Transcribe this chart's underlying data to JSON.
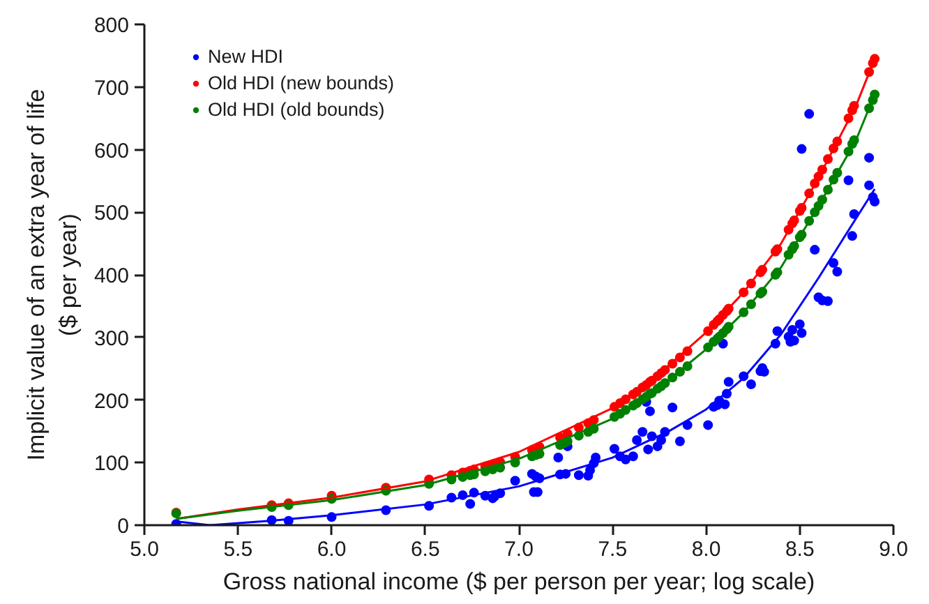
{
  "chart_data": {
    "type": "scatter",
    "xlabel": "Gross national income ($ per person per year; log scale)",
    "ylabel": "Implicit value of an extra year of life\n($ per year)",
    "xlim": [
      5.0,
      9.0
    ],
    "ylim": [
      0,
      800
    ],
    "xticks": [
      {
        "value": 5,
        "label": "5.0"
      },
      5.5,
      {
        "value": 6,
        "label": "6.0"
      },
      6.5,
      {
        "value": 7,
        "label": "7.0"
      },
      7.5,
      {
        "value": 8,
        "label": "8.0"
      },
      8.5,
      {
        "value": 9,
        "label": "9.0"
      }
    ],
    "yticks": [
      0,
      100,
      200,
      300,
      400,
      500,
      600,
      700,
      800
    ],
    "legend": "top left",
    "series": [
      {
        "name": "New HDI",
        "marker": "circle",
        "color": "#0000ff",
        "x": [
          5.17,
          5.68,
          5.77,
          6.0,
          6.29,
          6.52,
          6.64,
          6.7,
          6.74,
          6.76,
          6.82,
          6.86,
          6.87,
          6.9,
          6.98,
          7.07,
          7.08,
          7.09,
          7.1,
          7.11,
          7.21,
          7.22,
          7.25,
          7.26,
          7.32,
          7.37,
          7.38,
          7.4,
          7.41,
          7.51,
          7.54,
          7.57,
          7.61,
          7.63,
          7.66,
          7.68,
          7.69,
          7.7,
          7.71,
          7.74,
          7.76,
          7.78,
          7.82,
          7.86,
          7.9,
          8.01,
          8.04,
          8.06,
          8.07,
          8.09,
          8.1,
          8.11,
          8.12,
          8.2,
          8.24,
          8.29,
          8.3,
          8.31,
          8.37,
          8.38,
          8.44,
          8.45,
          8.46,
          8.47,
          8.5,
          8.51,
          8.51,
          8.55,
          8.58,
          8.6,
          8.62,
          8.65,
          8.68,
          8.7,
          8.76,
          8.78,
          8.79,
          8.87,
          8.87,
          8.89,
          8.9
        ],
        "values": [
          2,
          8,
          7,
          13,
          24,
          31,
          44,
          48,
          34,
          52,
          47,
          43,
          46,
          51,
          71,
          82,
          53,
          78,
          53,
          75,
          108,
          81,
          82,
          126,
          80,
          79,
          88,
          99,
          108,
          122,
          110,
          105,
          110,
          136,
          149,
          197,
          121,
          182,
          142,
          126,
          136,
          149,
          188,
          134,
          160,
          160,
          189,
          192,
          199,
          290,
          193,
          210,
          229,
          238,
          225,
          246,
          251,
          245,
          290,
          310,
          301,
          293,
          312,
          295,
          321,
          307,
          601,
          657,
          440,
          364,
          359,
          358,
          419,
          405,
          551,
          462,
          497,
          587,
          543,
          524,
          517
        ]
      },
      {
        "name": "Old HDI (new bounds)",
        "marker": "circle",
        "color": "#ff0000",
        "x": [
          5.17,
          5.68,
          5.77,
          6.0,
          6.29,
          6.52,
          6.64,
          6.7,
          6.74,
          6.76,
          6.82,
          6.86,
          6.9,
          6.98,
          7.07,
          7.11,
          7.22,
          7.26,
          7.32,
          7.37,
          7.4,
          7.51,
          7.54,
          7.57,
          7.61,
          7.63,
          7.66,
          7.68,
          7.7,
          7.71,
          7.74,
          7.76,
          7.78,
          7.82,
          7.86,
          7.9,
          8.01,
          8.04,
          8.06,
          8.07,
          8.09,
          8.11,
          8.12,
          8.2,
          8.24,
          8.29,
          8.3,
          8.37,
          8.38,
          8.44,
          8.46,
          8.47,
          8.5,
          8.51,
          8.55,
          8.58,
          8.6,
          8.62,
          8.65,
          8.68,
          8.7,
          8.76,
          8.78,
          8.79,
          8.87,
          8.89,
          8.9
        ],
        "values": [
          20,
          32,
          35,
          47,
          60,
          73,
          80,
          84,
          87,
          89,
          94,
          97,
          101,
          109,
          120,
          125,
          140,
          146,
          156,
          163,
          168,
          189,
          195,
          201,
          209,
          213,
          220,
          224,
          229,
          231,
          238,
          243,
          248,
          258,
          268,
          278,
          310,
          320,
          326,
          329,
          336,
          342,
          346,
          372,
          386,
          404,
          408,
          437,
          441,
          472,
          482,
          487,
          502,
          507,
          530,
          546,
          557,
          568,
          585,
          602,
          613,
          650,
          663,
          670,
          724,
          738,
          745
        ]
      },
      {
        "name": "Old HDI (old bounds)",
        "marker": "circle",
        "color": "#008000",
        "x": [
          5.17,
          5.68,
          5.77,
          6.0,
          6.29,
          6.52,
          6.64,
          6.7,
          6.74,
          6.76,
          6.82,
          6.86,
          6.9,
          6.98,
          7.07,
          7.09,
          7.11,
          7.22,
          7.24,
          7.26,
          7.32,
          7.37,
          7.4,
          7.51,
          7.54,
          7.57,
          7.61,
          7.63,
          7.66,
          7.68,
          7.7,
          7.71,
          7.74,
          7.76,
          7.78,
          7.82,
          7.86,
          7.9,
          8.01,
          8.04,
          8.06,
          8.07,
          8.09,
          8.11,
          8.12,
          8.2,
          8.24,
          8.29,
          8.3,
          8.37,
          8.38,
          8.44,
          8.46,
          8.47,
          8.5,
          8.51,
          8.55,
          8.58,
          8.6,
          8.62,
          8.65,
          8.68,
          8.7,
          8.76,
          8.78,
          8.79,
          8.87,
          8.89,
          8.9
        ],
        "values": [
          19,
          29,
          32,
          42,
          55,
          66,
          73,
          77,
          80,
          81,
          86,
          89,
          92,
          100,
          110,
          112,
          114,
          128,
          131,
          134,
          143,
          149,
          154,
          173,
          178,
          184,
          191,
          195,
          201,
          205,
          210,
          211,
          218,
          222,
          227,
          236,
          245,
          254,
          284,
          293,
          298,
          301,
          307,
          313,
          317,
          340,
          353,
          370,
          373,
          400,
          404,
          432,
          441,
          446,
          460,
          464,
          486,
          500,
          510,
          520,
          536,
          552,
          563,
          597,
          609,
          615,
          666,
          679,
          688
        ]
      },
      {
        "type": "line",
        "color": "#0000ff",
        "line_style": "solid",
        "x": [
          5.17,
          5.35,
          5.67,
          6.0,
          6.5,
          7.0,
          7.5,
          7.8,
          8.0,
          8.2,
          8.4,
          8.6,
          8.8,
          8.9
        ],
        "values": [
          6,
          0,
          7,
          16,
          33,
          62,
          108,
          150,
          185,
          235,
          305,
          395,
          490,
          537
        ]
      },
      {
        "type": "line",
        "color": "#ff0000",
        "line_style": "solid",
        "x": [
          5.17,
          5.5,
          6.0,
          6.5,
          7.0,
          7.5,
          7.8,
          8.0,
          8.2,
          8.4,
          8.6,
          8.8,
          8.9
        ],
        "values": [
          10,
          25,
          44,
          70,
          117,
          187,
          255,
          308,
          372,
          450,
          555,
          670,
          745
        ]
      },
      {
        "type": "line",
        "color": "#008000",
        "line_style": "solid",
        "x": [
          5.17,
          5.5,
          6.0,
          6.5,
          7.0,
          7.5,
          7.8,
          8.0,
          8.2,
          8.4,
          8.6,
          8.8,
          8.9
        ],
        "values": [
          10,
          23,
          40,
          64,
          106,
          170,
          232,
          281,
          340,
          412,
          510,
          615,
          688
        ]
      }
    ]
  }
}
